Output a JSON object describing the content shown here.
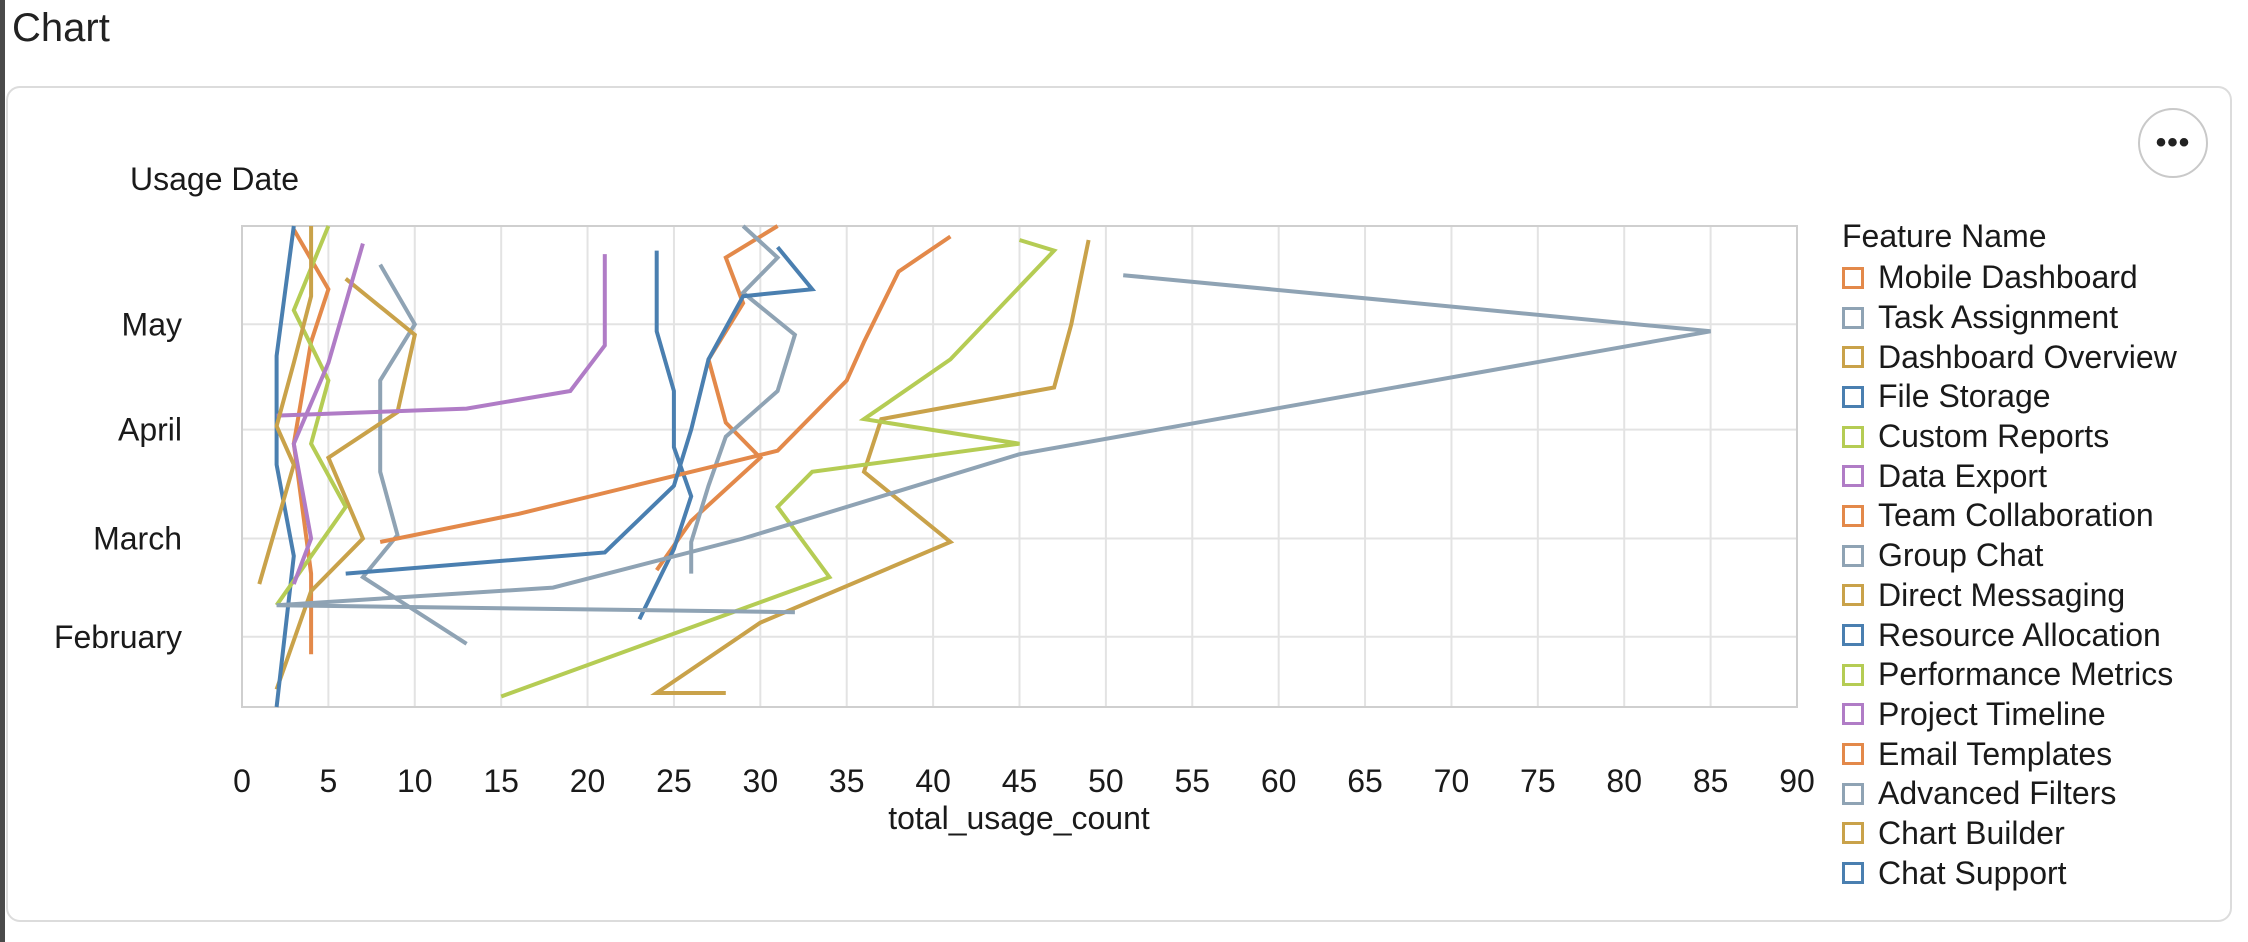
{
  "page": {
    "title": "Chart"
  },
  "toolbar": {
    "menu_icon": "ellipsis-icon",
    "menu_label": "•••"
  },
  "chart_data": {
    "type": "line",
    "xlabel": "total_usage_count",
    "ylabel": "Usage Date",
    "xlim": [
      0,
      90
    ],
    "x_ticks": [
      0,
      5,
      10,
      15,
      20,
      25,
      30,
      35,
      40,
      45,
      50,
      55,
      60,
      65,
      70,
      75,
      80,
      85,
      90
    ],
    "y_ticks": [
      "February",
      "March",
      "April",
      "May"
    ],
    "y_tick_dates": [
      "02-01",
      "03-01",
      "04-01",
      "05-01"
    ],
    "ylim": [
      "01-12",
      "05-29"
    ],
    "grid": true,
    "legend_title": "Feature Name",
    "legend_position": "right",
    "series": [
      {
        "name": "Mobile Dashboard",
        "color": "#e3894a",
        "points": [
          [
            3,
            "05-28"
          ],
          [
            5,
            "05-11"
          ],
          [
            4,
            "04-26"
          ],
          [
            3,
            "03-28"
          ],
          [
            4,
            "02-19"
          ],
          [
            4,
            "01-27"
          ]
        ]
      },
      {
        "name": "Task Assignment",
        "color": "#8fa3b4",
        "points": [
          [
            8,
            "05-18"
          ],
          [
            10,
            "05-01"
          ],
          [
            8,
            "04-15"
          ],
          [
            8,
            "03-20"
          ],
          [
            9,
            "03-02"
          ],
          [
            7,
            "02-18"
          ],
          [
            13,
            "01-30"
          ]
        ]
      },
      {
        "name": "Dashboard Overview",
        "color": "#c9a24a",
        "points": [
          [
            6,
            "05-14"
          ],
          [
            10,
            "04-28"
          ],
          [
            9,
            "04-06"
          ],
          [
            5,
            "03-24"
          ],
          [
            7,
            "03-01"
          ],
          [
            4,
            "02-14"
          ],
          [
            2,
            "01-17"
          ]
        ]
      },
      {
        "name": "File Storage",
        "color": "#4a7fb0",
        "points": [
          [
            3,
            "05-29"
          ],
          [
            2,
            "04-22"
          ],
          [
            2,
            "03-22"
          ],
          [
            3,
            "02-24"
          ],
          [
            2,
            "01-12"
          ]
        ]
      },
      {
        "name": "Custom Reports",
        "color": "#b5cc54",
        "points": [
          [
            5,
            "05-29"
          ],
          [
            3,
            "05-05"
          ],
          [
            5,
            "04-15"
          ],
          [
            4,
            "03-28"
          ],
          [
            6,
            "03-10"
          ],
          [
            2,
            "02-10"
          ]
        ]
      },
      {
        "name": "Data Export",
        "color": "#b07cc6",
        "points": [
          [
            7,
            "05-24"
          ],
          [
            6,
            "05-07"
          ],
          [
            5,
            "04-20"
          ],
          [
            3,
            "03-28"
          ],
          [
            4,
            "03-01"
          ],
          [
            3,
            "02-16"
          ]
        ]
      },
      {
        "name": "Team Collaboration",
        "color": "#e3894a",
        "points": [
          [
            31,
            "05-29"
          ],
          [
            28,
            "05-20"
          ],
          [
            29,
            "05-07"
          ],
          [
            27,
            "04-21"
          ],
          [
            28,
            "04-03"
          ],
          [
            30,
            "03-24"
          ],
          [
            26,
            "03-06"
          ],
          [
            24,
            "02-20"
          ]
        ]
      },
      {
        "name": "Group Chat",
        "color": "#8fa3b4",
        "points": [
          [
            29,
            "05-29"
          ],
          [
            31,
            "05-20"
          ],
          [
            29,
            "05-10"
          ],
          [
            32,
            "04-28"
          ],
          [
            31,
            "04-12"
          ],
          [
            28,
            "03-30"
          ],
          [
            27,
            "03-16"
          ],
          [
            26,
            "02-28"
          ],
          [
            26,
            "02-19"
          ]
        ]
      },
      {
        "name": "Direct Messaging",
        "color": "#c9a24a",
        "points": [
          [
            49,
            "05-25"
          ],
          [
            48,
            "05-01"
          ],
          [
            47,
            "04-13"
          ],
          [
            37,
            "04-04"
          ],
          [
            36,
            "03-20"
          ],
          [
            41,
            "02-28"
          ],
          [
            30,
            "02-05"
          ],
          [
            24,
            "01-16"
          ],
          [
            28,
            "01-16"
          ]
        ]
      },
      {
        "name": "Resource Allocation",
        "color": "#4a7fb0",
        "points": [
          [
            24,
            "05-22"
          ],
          [
            24,
            "04-29"
          ],
          [
            25,
            "04-12"
          ],
          [
            25,
            "03-27"
          ],
          [
            26,
            "03-13"
          ],
          [
            25,
            "02-26"
          ],
          [
            23,
            "02-06"
          ]
        ]
      },
      {
        "name": "Performance Metrics",
        "color": "#b5cc54",
        "points": [
          [
            45,
            "05-25"
          ],
          [
            47,
            "05-22"
          ],
          [
            41,
            "04-21"
          ],
          [
            36,
            "04-04"
          ],
          [
            45,
            "03-28"
          ],
          [
            33,
            "03-20"
          ],
          [
            31,
            "03-10"
          ],
          [
            34,
            "02-18"
          ],
          [
            15,
            "01-15"
          ]
        ]
      },
      {
        "name": "Project Timeline",
        "color": "#b07cc6",
        "points": [
          [
            21,
            "05-21"
          ],
          [
            21,
            "04-25"
          ],
          [
            19,
            "04-12"
          ],
          [
            13,
            "04-07"
          ],
          [
            2,
            "04-05"
          ]
        ]
      },
      {
        "name": "Email Templates",
        "color": "#e3894a",
        "points": [
          [
            41,
            "05-26"
          ],
          [
            38,
            "05-16"
          ],
          [
            36,
            "04-26"
          ],
          [
            35,
            "04-15"
          ],
          [
            31,
            "03-26"
          ],
          [
            26,
            "03-20"
          ],
          [
            16,
            "03-08"
          ],
          [
            8,
            "02-28"
          ]
        ]
      },
      {
        "name": "Advanced Filters",
        "color": "#8fa3b4",
        "points": [
          [
            51,
            "05-15"
          ],
          [
            85,
            "04-29"
          ],
          [
            45,
            "03-25"
          ],
          [
            29,
            "03-01"
          ],
          [
            18,
            "02-15"
          ],
          [
            2,
            "02-10"
          ],
          [
            32,
            "02-08"
          ]
        ]
      },
      {
        "name": "Chart Builder",
        "color": "#c9a24a",
        "points": [
          [
            4,
            "05-29"
          ],
          [
            4,
            "05-09"
          ],
          [
            3,
            "04-20"
          ],
          [
            2,
            "04-02"
          ],
          [
            3,
            "03-22"
          ],
          [
            2,
            "03-05"
          ],
          [
            1,
            "02-16"
          ]
        ]
      },
      {
        "name": "Chat Support",
        "color": "#4a7fb0",
        "points": [
          [
            31,
            "05-23"
          ],
          [
            33,
            "05-11"
          ],
          [
            29,
            "05-09"
          ],
          [
            27,
            "04-21"
          ],
          [
            26,
            "04-01"
          ],
          [
            25,
            "03-16"
          ],
          [
            21,
            "02-25"
          ],
          [
            6,
            "02-19"
          ]
        ]
      }
    ]
  }
}
